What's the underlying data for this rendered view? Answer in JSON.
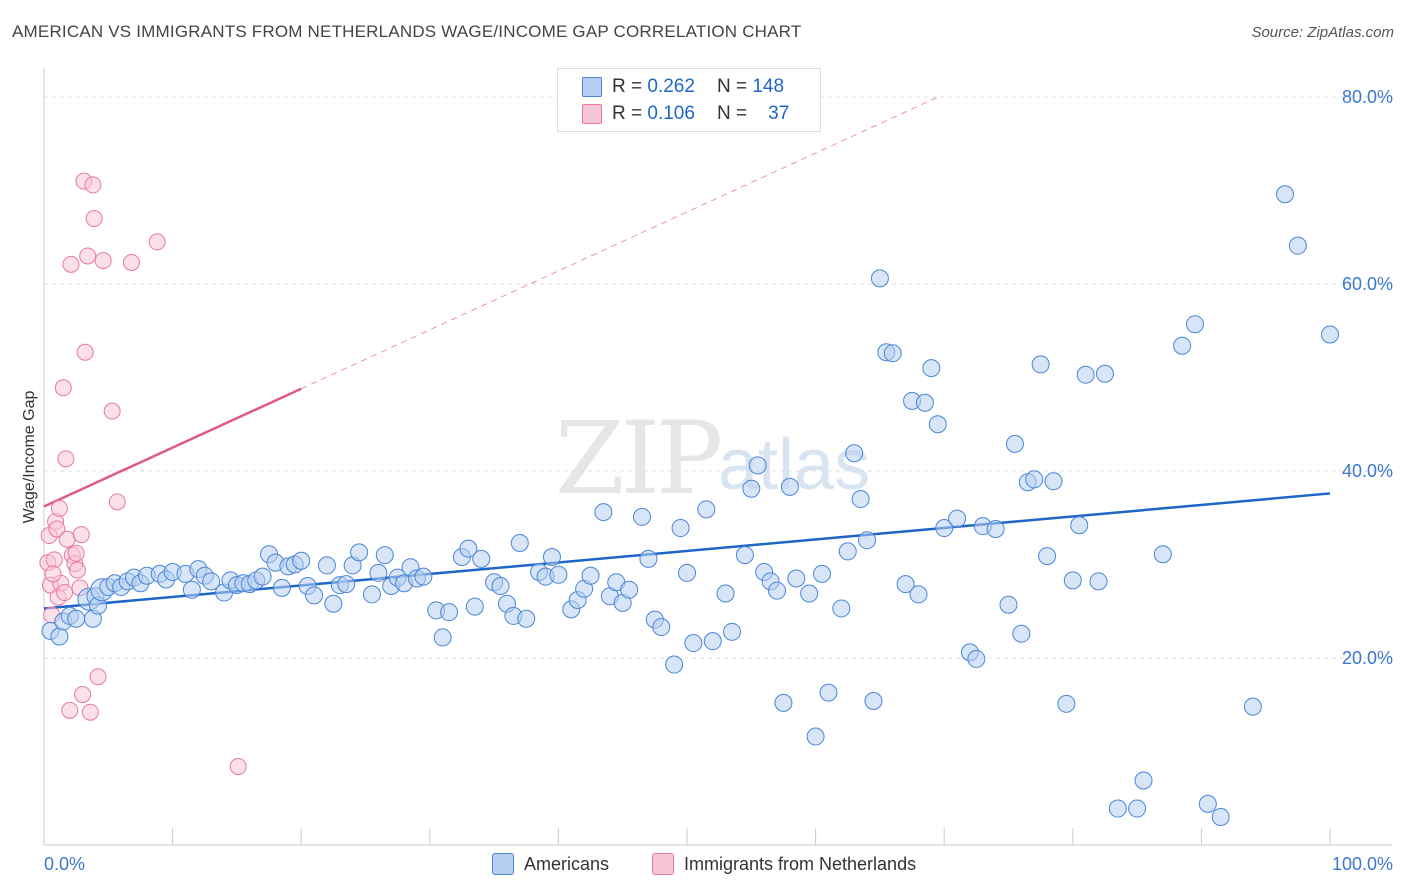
{
  "header": {
    "title": "AMERICAN VS IMMIGRANTS FROM NETHERLANDS WAGE/INCOME GAP CORRELATION CHART",
    "source": "Source: ZipAtlas.com"
  },
  "legend": {
    "rows": [
      {
        "r_label": "R =",
        "r_value": "0.262",
        "n_label": "N =",
        "n_value": "148"
      },
      {
        "r_label": "R =",
        "r_value": "0.106",
        "n_label": "N =",
        "n_value": "37"
      }
    ]
  },
  "watermark": {
    "zip": "ZIP",
    "atlas": "atlas"
  },
  "colors": {
    "americans": "#4a86d8",
    "americans_fill": "#b7cff0",
    "netherlands": "#e8799b",
    "netherlands_fill": "#f7c6d5",
    "trend_blue": "#1f66c9",
    "trend_pink": "#e05a85",
    "axis_label": "#3b78d0"
  },
  "chart_data": {
    "type": "scatter",
    "title": "AMERICAN VS IMMIGRANTS FROM NETHERLANDS WAGE/INCOME GAP CORRELATION CHART",
    "xlabel": "",
    "ylabel": "Wage/Income Gap",
    "xlim": [
      0,
      100
    ],
    "ylim": [
      0,
      80
    ],
    "x_tick_labels": [
      "0.0%",
      "100.0%"
    ],
    "y_tick_labels": [
      "20.0%",
      "40.0%",
      "60.0%",
      "80.0%"
    ],
    "y_ticks": [
      20,
      40,
      60,
      80
    ],
    "grid": "horizontal dashed",
    "legend_position": "top-center",
    "series": [
      {
        "name": "Americans",
        "r": 0.262,
        "n": 148,
        "trend": {
          "x": [
            0,
            100
          ],
          "y": [
            25.3,
            37.6
          ]
        },
        "points": [
          [
            0.5,
            22.9
          ],
          [
            1.2,
            22.3
          ],
          [
            1.5,
            23.9
          ],
          [
            2.0,
            24.5
          ],
          [
            2.5,
            24.2
          ],
          [
            3.5,
            26.3
          ],
          [
            3.8,
            24.2
          ],
          [
            4.0,
            26.6
          ],
          [
            4.2,
            25.6
          ],
          [
            4.5,
            27.3
          ],
          [
            5.0,
            27.6
          ],
          [
            5.5,
            28.0
          ],
          [
            6.0,
            27.6
          ],
          [
            6.5,
            28.2
          ],
          [
            7.0,
            28.6
          ],
          [
            7.5,
            28.0
          ],
          [
            8.0,
            28.8
          ],
          [
            9.0,
            29.0
          ],
          [
            9.5,
            28.4
          ],
          [
            10.0,
            29.2
          ],
          [
            11.0,
            29.0
          ],
          [
            11.5,
            27.3
          ],
          [
            12.0,
            29.5
          ],
          [
            12.5,
            28.8
          ],
          [
            13.0,
            28.2
          ],
          [
            14.0,
            27.0
          ],
          [
            14.5,
            28.3
          ],
          [
            15.0,
            27.8
          ],
          [
            15.5,
            28.0
          ],
          [
            16.0,
            27.9
          ],
          [
            16.5,
            28.3
          ],
          [
            17.0,
            28.7
          ],
          [
            17.5,
            31.1
          ],
          [
            18.0,
            30.2
          ],
          [
            18.5,
            27.5
          ],
          [
            19.0,
            29.8
          ],
          [
            19.5,
            30.0
          ],
          [
            20.0,
            30.4
          ],
          [
            20.5,
            27.7
          ],
          [
            21.0,
            26.7
          ],
          [
            22.0,
            29.9
          ],
          [
            22.5,
            25.8
          ],
          [
            23.0,
            27.8
          ],
          [
            23.5,
            27.9
          ],
          [
            24.0,
            29.9
          ],
          [
            24.5,
            31.3
          ],
          [
            25.5,
            26.8
          ],
          [
            26.0,
            29.1
          ],
          [
            26.5,
            31.0
          ],
          [
            27.0,
            27.7
          ],
          [
            27.5,
            28.6
          ],
          [
            28.0,
            28.0
          ],
          [
            28.5,
            29.7
          ],
          [
            29.0,
            28.5
          ],
          [
            29.5,
            28.7
          ],
          [
            30.5,
            25.1
          ],
          [
            31.0,
            22.2
          ],
          [
            31.5,
            24.9
          ],
          [
            32.5,
            30.8
          ],
          [
            33.0,
            31.7
          ],
          [
            33.5,
            25.5
          ],
          [
            34.0,
            30.6
          ],
          [
            35.0,
            28.1
          ],
          [
            35.5,
            27.7
          ],
          [
            36.0,
            25.8
          ],
          [
            36.5,
            24.5
          ],
          [
            37.0,
            32.3
          ],
          [
            37.5,
            24.2
          ],
          [
            38.5,
            29.2
          ],
          [
            39.0,
            28.7
          ],
          [
            39.5,
            30.8
          ],
          [
            40.0,
            28.9
          ],
          [
            41.0,
            25.2
          ],
          [
            41.5,
            26.2
          ],
          [
            42.0,
            27.4
          ],
          [
            42.5,
            28.8
          ],
          [
            43.5,
            35.6
          ],
          [
            44.0,
            26.6
          ],
          [
            44.5,
            28.1
          ],
          [
            45.0,
            25.9
          ],
          [
            45.5,
            27.3
          ],
          [
            46.5,
            35.1
          ],
          [
            47.0,
            30.6
          ],
          [
            47.5,
            24.1
          ],
          [
            48.0,
            23.3
          ],
          [
            49.0,
            19.3
          ],
          [
            49.5,
            33.9
          ],
          [
            50.0,
            29.1
          ],
          [
            50.5,
            21.6
          ],
          [
            51.5,
            35.9
          ],
          [
            52.0,
            21.8
          ],
          [
            53.0,
            26.9
          ],
          [
            53.5,
            22.8
          ],
          [
            54.5,
            31.0
          ],
          [
            55.0,
            38.1
          ],
          [
            55.5,
            40.6
          ],
          [
            56.0,
            29.2
          ],
          [
            56.5,
            28.2
          ],
          [
            57.0,
            27.2
          ],
          [
            57.5,
            15.2
          ],
          [
            58.0,
            38.3
          ],
          [
            58.5,
            28.5
          ],
          [
            59.5,
            26.9
          ],
          [
            60.0,
            11.6
          ],
          [
            60.5,
            29.0
          ],
          [
            61.0,
            16.3
          ],
          [
            62.0,
            25.3
          ],
          [
            62.5,
            31.4
          ],
          [
            63.0,
            41.9
          ],
          [
            63.5,
            37.0
          ],
          [
            64.0,
            32.6
          ],
          [
            64.5,
            15.4
          ],
          [
            65.0,
            60.6
          ],
          [
            65.5,
            52.7
          ],
          [
            66.0,
            52.6
          ],
          [
            67.0,
            27.9
          ],
          [
            67.5,
            47.5
          ],
          [
            68.0,
            26.8
          ],
          [
            68.5,
            47.3
          ],
          [
            69.0,
            51.0
          ],
          [
            69.5,
            45.0
          ],
          [
            70.0,
            33.9
          ],
          [
            71.0,
            34.9
          ],
          [
            72.0,
            20.6
          ],
          [
            72.5,
            19.9
          ],
          [
            73.0,
            34.1
          ],
          [
            74.0,
            33.8
          ],
          [
            75.0,
            25.7
          ],
          [
            75.5,
            42.9
          ],
          [
            76.0,
            22.6
          ],
          [
            76.5,
            38.8
          ],
          [
            77.0,
            39.1
          ],
          [
            77.5,
            51.4
          ],
          [
            78.0,
            30.9
          ],
          [
            78.5,
            38.9
          ],
          [
            79.5,
            15.1
          ],
          [
            80.0,
            28.3
          ],
          [
            80.5,
            34.2
          ],
          [
            81.0,
            50.3
          ],
          [
            82.0,
            28.2
          ],
          [
            82.5,
            50.4
          ],
          [
            83.5,
            3.9
          ],
          [
            85.0,
            3.9
          ],
          [
            85.5,
            6.9
          ],
          [
            87.0,
            31.1
          ],
          [
            88.5,
            53.4
          ],
          [
            89.5,
            55.7
          ],
          [
            90.5,
            4.4
          ],
          [
            91.5,
            3.0
          ],
          [
            94.0,
            14.8
          ],
          [
            96.5,
            69.6
          ],
          [
            97.5,
            64.1
          ],
          [
            100.0,
            54.6
          ]
        ]
      },
      {
        "name": "Immigrants from Netherlands",
        "r": 0.106,
        "n": 37,
        "trend": {
          "x": [
            0,
            20
          ],
          "y": [
            36.2,
            48.8
          ]
        },
        "points": [
          [
            0.3,
            30.2
          ],
          [
            0.4,
            33.1
          ],
          [
            0.5,
            27.8
          ],
          [
            0.6,
            24.6
          ],
          [
            0.8,
            30.5
          ],
          [
            0.9,
            34.6
          ],
          [
            1.0,
            33.8
          ],
          [
            1.2,
            36.0
          ],
          [
            1.3,
            28.0
          ],
          [
            1.5,
            48.9
          ],
          [
            1.7,
            41.3
          ],
          [
            1.8,
            32.7
          ],
          [
            2.0,
            14.4
          ],
          [
            2.1,
            62.1
          ],
          [
            2.2,
            31.0
          ],
          [
            2.4,
            30.1
          ],
          [
            2.6,
            29.4
          ],
          [
            2.8,
            27.5
          ],
          [
            2.9,
            33.2
          ],
          [
            3.0,
            16.1
          ],
          [
            3.1,
            71.0
          ],
          [
            3.2,
            52.7
          ],
          [
            3.4,
            63.0
          ],
          [
            3.6,
            14.2
          ],
          [
            3.8,
            70.6
          ],
          [
            3.9,
            67.0
          ],
          [
            4.2,
            18.0
          ],
          [
            4.6,
            62.5
          ],
          [
            5.3,
            46.4
          ],
          [
            5.7,
            36.7
          ],
          [
            6.8,
            62.3
          ],
          [
            8.8,
            64.5
          ],
          [
            15.1,
            8.4
          ],
          [
            2.5,
            31.2
          ],
          [
            1.1,
            26.5
          ],
          [
            0.7,
            29.0
          ],
          [
            1.6,
            27.0
          ]
        ]
      }
    ]
  },
  "bottom_legend": {
    "items": [
      {
        "label": "Americans"
      },
      {
        "label": "Immigrants from Netherlands"
      }
    ]
  }
}
